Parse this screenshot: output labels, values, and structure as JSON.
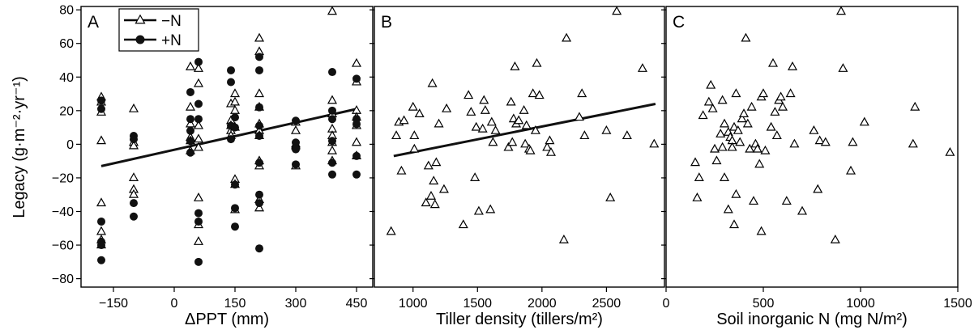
{
  "chart_data": [
    {
      "type": "scatter",
      "panel_label": "A",
      "xlabel": "ΔPPT (mm)",
      "ylabel": "Legacy (g·m⁻²·yr⁻¹)",
      "xlim": [
        -230,
        490
      ],
      "ylim": [
        -85,
        82
      ],
      "xticks": [
        -150,
        0,
        150,
        300,
        450
      ],
      "xticklabels": [
        "−150",
        "0",
        "150",
        "300",
        "450"
      ],
      "yticks": [
        -80,
        -60,
        -40,
        -20,
        0,
        20,
        40,
        60,
        80
      ],
      "yticklabels": [
        "−80",
        "−60",
        "−40",
        "−20",
        "0",
        "20",
        "40",
        "60",
        "80"
      ],
      "legend": {
        "position": "top-left",
        "entries": [
          {
            "label": "−N",
            "marker": "triangle-open"
          },
          {
            "label": "+N",
            "marker": "circle-filled"
          }
        ]
      },
      "series": [
        {
          "name": "−N",
          "marker": "triangle-open",
          "points": [
            [
              -180,
              28
            ],
            [
              -180,
              25
            ],
            [
              -180,
              19
            ],
            [
              -180,
              2
            ],
            [
              -180,
              -35
            ],
            [
              -180,
              -52
            ],
            [
              -180,
              -57
            ],
            [
              -180,
              -60
            ],
            [
              -100,
              21
            ],
            [
              -100,
              1
            ],
            [
              -100,
              -1
            ],
            [
              -100,
              -20
            ],
            [
              -100,
              -27
            ],
            [
              -100,
              -30
            ],
            [
              40,
              46
            ],
            [
              40,
              22
            ],
            [
              40,
              12
            ],
            [
              40,
              4
            ],
            [
              40,
              2
            ],
            [
              40,
              -4
            ],
            [
              60,
              45
            ],
            [
              60,
              36
            ],
            [
              60,
              11
            ],
            [
              60,
              3
            ],
            [
              60,
              -2
            ],
            [
              60,
              -32
            ],
            [
              60,
              -48
            ],
            [
              60,
              -58
            ],
            [
              140,
              24
            ],
            [
              140,
              14
            ],
            [
              140,
              11
            ],
            [
              140,
              8
            ],
            [
              140,
              5
            ],
            [
              150,
              30
            ],
            [
              150,
              25
            ],
            [
              150,
              20
            ],
            [
              150,
              10
            ],
            [
              150,
              -21
            ],
            [
              150,
              -24
            ],
            [
              150,
              -39
            ],
            [
              210,
              63
            ],
            [
              210,
              55
            ],
            [
              210,
              30
            ],
            [
              210,
              22
            ],
            [
              210,
              12
            ],
            [
              210,
              8
            ],
            [
              210,
              5
            ],
            [
              210,
              -10
            ],
            [
              210,
              -13
            ],
            [
              210,
              -33
            ],
            [
              210,
              -38
            ],
            [
              300,
              13
            ],
            [
              300,
              8
            ],
            [
              300,
              0
            ],
            [
              300,
              -1
            ],
            [
              300,
              -13
            ],
            [
              390,
              79
            ],
            [
              390,
              26
            ],
            [
              390,
              18
            ],
            [
              390,
              9
            ],
            [
              390,
              5
            ],
            [
              390,
              1
            ],
            [
              390,
              -4
            ],
            [
              390,
              -10
            ],
            [
              450,
              48
            ],
            [
              450,
              37
            ],
            [
              450,
              20
            ],
            [
              450,
              16
            ],
            [
              450,
              11
            ],
            [
              450,
              1
            ],
            [
              450,
              -7
            ]
          ]
        },
        {
          "name": "+N",
          "marker": "circle-filled",
          "points": [
            [
              -180,
              26
            ],
            [
              -180,
              21
            ],
            [
              -180,
              -46
            ],
            [
              -180,
              -58
            ],
            [
              -180,
              -60
            ],
            [
              -180,
              -69
            ],
            [
              -100,
              5
            ],
            [
              -100,
              3
            ],
            [
              -100,
              -35
            ],
            [
              -100,
              -43
            ],
            [
              40,
              31
            ],
            [
              40,
              15
            ],
            [
              40,
              8
            ],
            [
              40,
              2
            ],
            [
              40,
              -5
            ],
            [
              60,
              49
            ],
            [
              60,
              24
            ],
            [
              60,
              15
            ],
            [
              60,
              -41
            ],
            [
              60,
              -46
            ],
            [
              60,
              -70
            ],
            [
              140,
              44
            ],
            [
              140,
              37
            ],
            [
              140,
              11
            ],
            [
              140,
              3
            ],
            [
              150,
              16
            ],
            [
              150,
              10
            ],
            [
              150,
              -24
            ],
            [
              150,
              -38
            ],
            [
              150,
              -49
            ],
            [
              210,
              52
            ],
            [
              210,
              44
            ],
            [
              210,
              22
            ],
            [
              210,
              11
            ],
            [
              210,
              5
            ],
            [
              210,
              -11
            ],
            [
              210,
              -30
            ],
            [
              210,
              -35
            ],
            [
              210,
              -62
            ],
            [
              300,
              14
            ],
            [
              300,
              1
            ],
            [
              300,
              -3
            ],
            [
              300,
              -12
            ],
            [
              390,
              43
            ],
            [
              390,
              20
            ],
            [
              390,
              15
            ],
            [
              390,
              2
            ],
            [
              390,
              -11
            ],
            [
              390,
              -18
            ],
            [
              450,
              39
            ],
            [
              450,
              15
            ],
            [
              450,
              12
            ],
            [
              450,
              -7
            ],
            [
              450,
              -18
            ]
          ]
        }
      ],
      "fit_line": {
        "x": [
          -180,
          450
        ],
        "y": [
          -13,
          21
        ]
      }
    },
    {
      "type": "scatter",
      "panel_label": "B",
      "xlabel": "Tiller density (tillers/m²)",
      "xlim": [
        700,
        2950
      ],
      "ylim": [
        -85,
        82
      ],
      "xticks": [
        1000,
        1500,
        2000,
        2500
      ],
      "xticklabels": [
        "1000",
        "1500",
        "2000",
        "2500"
      ],
      "series": [
        {
          "marker": "triangle-open",
          "points": [
            [
              830,
              -52
            ],
            [
              870,
              5
            ],
            [
              890,
              13
            ],
            [
              910,
              -16
            ],
            [
              930,
              14
            ],
            [
              1000,
              22
            ],
            [
              1010,
              -3
            ],
            [
              1010,
              5
            ],
            [
              1050,
              18
            ],
            [
              1100,
              -35
            ],
            [
              1120,
              -13
            ],
            [
              1140,
              -31
            ],
            [
              1150,
              36
            ],
            [
              1160,
              -22
            ],
            [
              1170,
              -36
            ],
            [
              1180,
              -11
            ],
            [
              1200,
              12
            ],
            [
              1240,
              -27
            ],
            [
              1260,
              21
            ],
            [
              1390,
              -48
            ],
            [
              1430,
              29
            ],
            [
              1450,
              19
            ],
            [
              1480,
              -20
            ],
            [
              1490,
              10
            ],
            [
              1510,
              -40
            ],
            [
              1540,
              9
            ],
            [
              1550,
              26
            ],
            [
              1560,
              20
            ],
            [
              1600,
              -39
            ],
            [
              1610,
              13
            ],
            [
              1620,
              1
            ],
            [
              1640,
              8
            ],
            [
              1740,
              -2
            ],
            [
              1760,
              25
            ],
            [
              1770,
              1
            ],
            [
              1780,
              15
            ],
            [
              1790,
              46
            ],
            [
              1800,
              12
            ],
            [
              1820,
              14
            ],
            [
              1860,
              20
            ],
            [
              1870,
              0
            ],
            [
              1880,
              11
            ],
            [
              1900,
              -3
            ],
            [
              1910,
              -4
            ],
            [
              1930,
              30
            ],
            [
              1950,
              8
            ],
            [
              1960,
              48
            ],
            [
              1980,
              29
            ],
            [
              2040,
              -2
            ],
            [
              2060,
              2
            ],
            [
              2070,
              -5
            ],
            [
              2170,
              -57
            ],
            [
              2190,
              63
            ],
            [
              2290,
              16
            ],
            [
              2310,
              30
            ],
            [
              2330,
              5
            ],
            [
              2500,
              8
            ],
            [
              2530,
              -32
            ],
            [
              2580,
              79
            ],
            [
              2660,
              5
            ],
            [
              2780,
              45
            ],
            [
              2870,
              0
            ]
          ]
        }
      ],
      "fit_line": {
        "x": [
          850,
          2880
        ],
        "y": [
          -7,
          24
        ]
      }
    },
    {
      "type": "scatter",
      "panel_label": "C",
      "xlabel": "Soil inorganic N (mg N/m²)",
      "xlim": [
        0,
        1500
      ],
      "ylim": [
        -85,
        82
      ],
      "xticks": [
        0,
        500,
        1000,
        1500
      ],
      "xticklabels": [
        "0",
        "500",
        "1000",
        "1500"
      ],
      "series": [
        {
          "marker": "triangle-open",
          "points": [
            [
              150,
              -11
            ],
            [
              160,
              -32
            ],
            [
              170,
              -20
            ],
            [
              190,
              17
            ],
            [
              220,
              25
            ],
            [
              230,
              35
            ],
            [
              240,
              21
            ],
            [
              250,
              -3
            ],
            [
              260,
              -10
            ],
            [
              280,
              6
            ],
            [
              290,
              26
            ],
            [
              290,
              -2
            ],
            [
              300,
              12
            ],
            [
              300,
              -20
            ],
            [
              320,
              7
            ],
            [
              320,
              -39
            ],
            [
              330,
              4
            ],
            [
              340,
              2
            ],
            [
              340,
              -2
            ],
            [
              350,
              10
            ],
            [
              350,
              -48
            ],
            [
              360,
              30
            ],
            [
              360,
              -30
            ],
            [
              370,
              8
            ],
            [
              380,
              1
            ],
            [
              390,
              15
            ],
            [
              400,
              18
            ],
            [
              410,
              63
            ],
            [
              420,
              12
            ],
            [
              430,
              -3
            ],
            [
              440,
              22
            ],
            [
              450,
              -34
            ],
            [
              460,
              0
            ],
            [
              470,
              -3
            ],
            [
              480,
              -12
            ],
            [
              490,
              28
            ],
            [
              500,
              30
            ],
            [
              490,
              -52
            ],
            [
              510,
              -4
            ],
            [
              540,
              10
            ],
            [
              550,
              48
            ],
            [
              560,
              19
            ],
            [
              570,
              5
            ],
            [
              580,
              26
            ],
            [
              590,
              28
            ],
            [
              600,
              22
            ],
            [
              620,
              -34
            ],
            [
              640,
              30
            ],
            [
              650,
              46
            ],
            [
              660,
              0
            ],
            [
              700,
              -40
            ],
            [
              760,
              8
            ],
            [
              780,
              -27
            ],
            [
              790,
              2
            ],
            [
              820,
              1
            ],
            [
              870,
              -57
            ],
            [
              900,
              79
            ],
            [
              910,
              45
            ],
            [
              950,
              -16
            ],
            [
              960,
              1
            ],
            [
              1020,
              13
            ],
            [
              1280,
              22
            ],
            [
              1270,
              0
            ],
            [
              1460,
              -5
            ]
          ]
        }
      ]
    }
  ]
}
